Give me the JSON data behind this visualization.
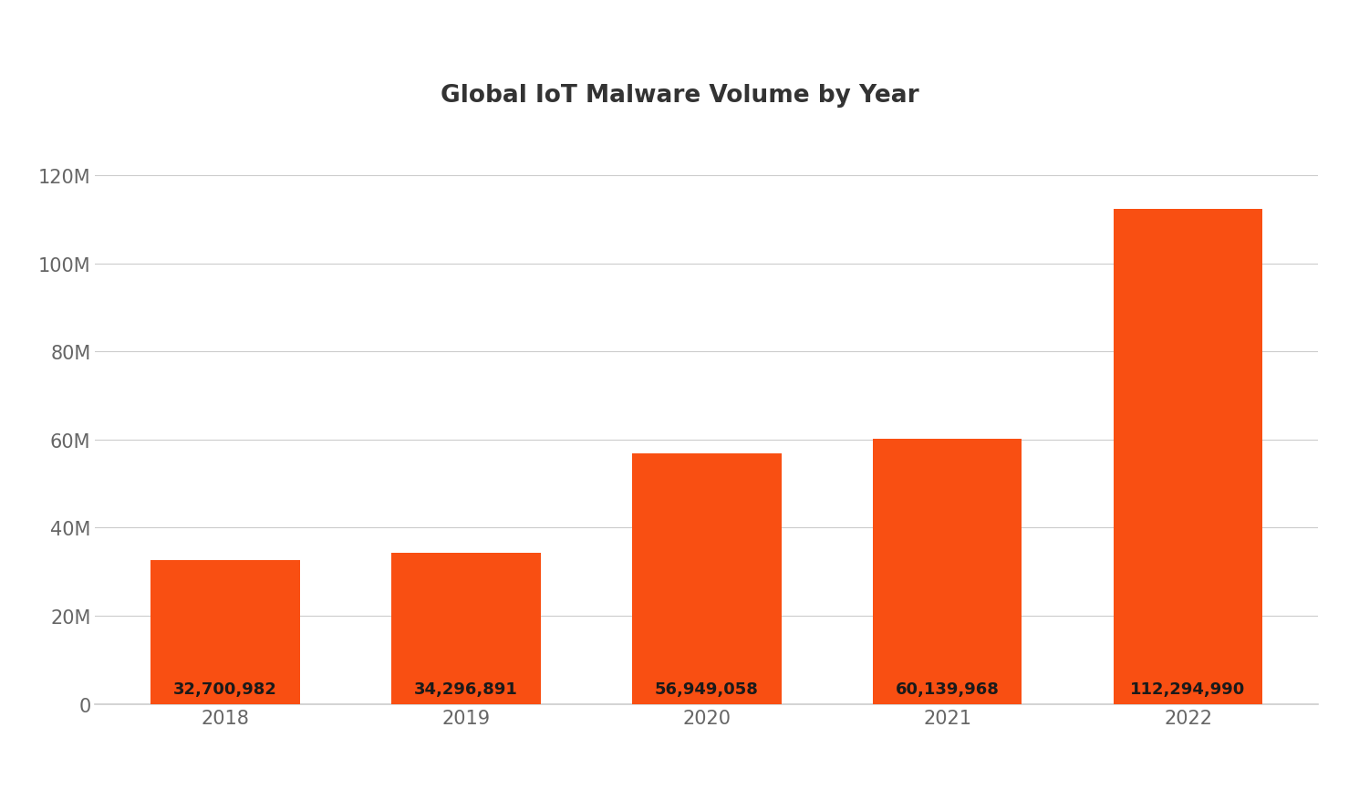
{
  "title": "Global IoT Malware Volume by Year",
  "categories": [
    "2018",
    "2019",
    "2020",
    "2021",
    "2022"
  ],
  "values": [
    32700982,
    34296891,
    56949058,
    60139968,
    112294990
  ],
  "bar_color": "#F94F12",
  "background_color": "#FFFFFF",
  "label_color": "#1A1A1A",
  "tick_color": "#666666",
  "title_color": "#333333",
  "grid_color": "#CCCCCC",
  "ylim": [
    0,
    120000000
  ],
  "yticks": [
    0,
    20000000,
    40000000,
    60000000,
    80000000,
    100000000,
    120000000
  ],
  "ytick_labels": [
    "0",
    "20M",
    "40M",
    "60M",
    "80M",
    "100M",
    "120M"
  ],
  "bar_labels": [
    "32,700,982",
    "34,296,891",
    "56,949,058",
    "60,139,968",
    "112,294,990"
  ],
  "title_fontsize": 19,
  "tick_fontsize": 15,
  "label_fontsize": 13,
  "bar_width": 0.62
}
